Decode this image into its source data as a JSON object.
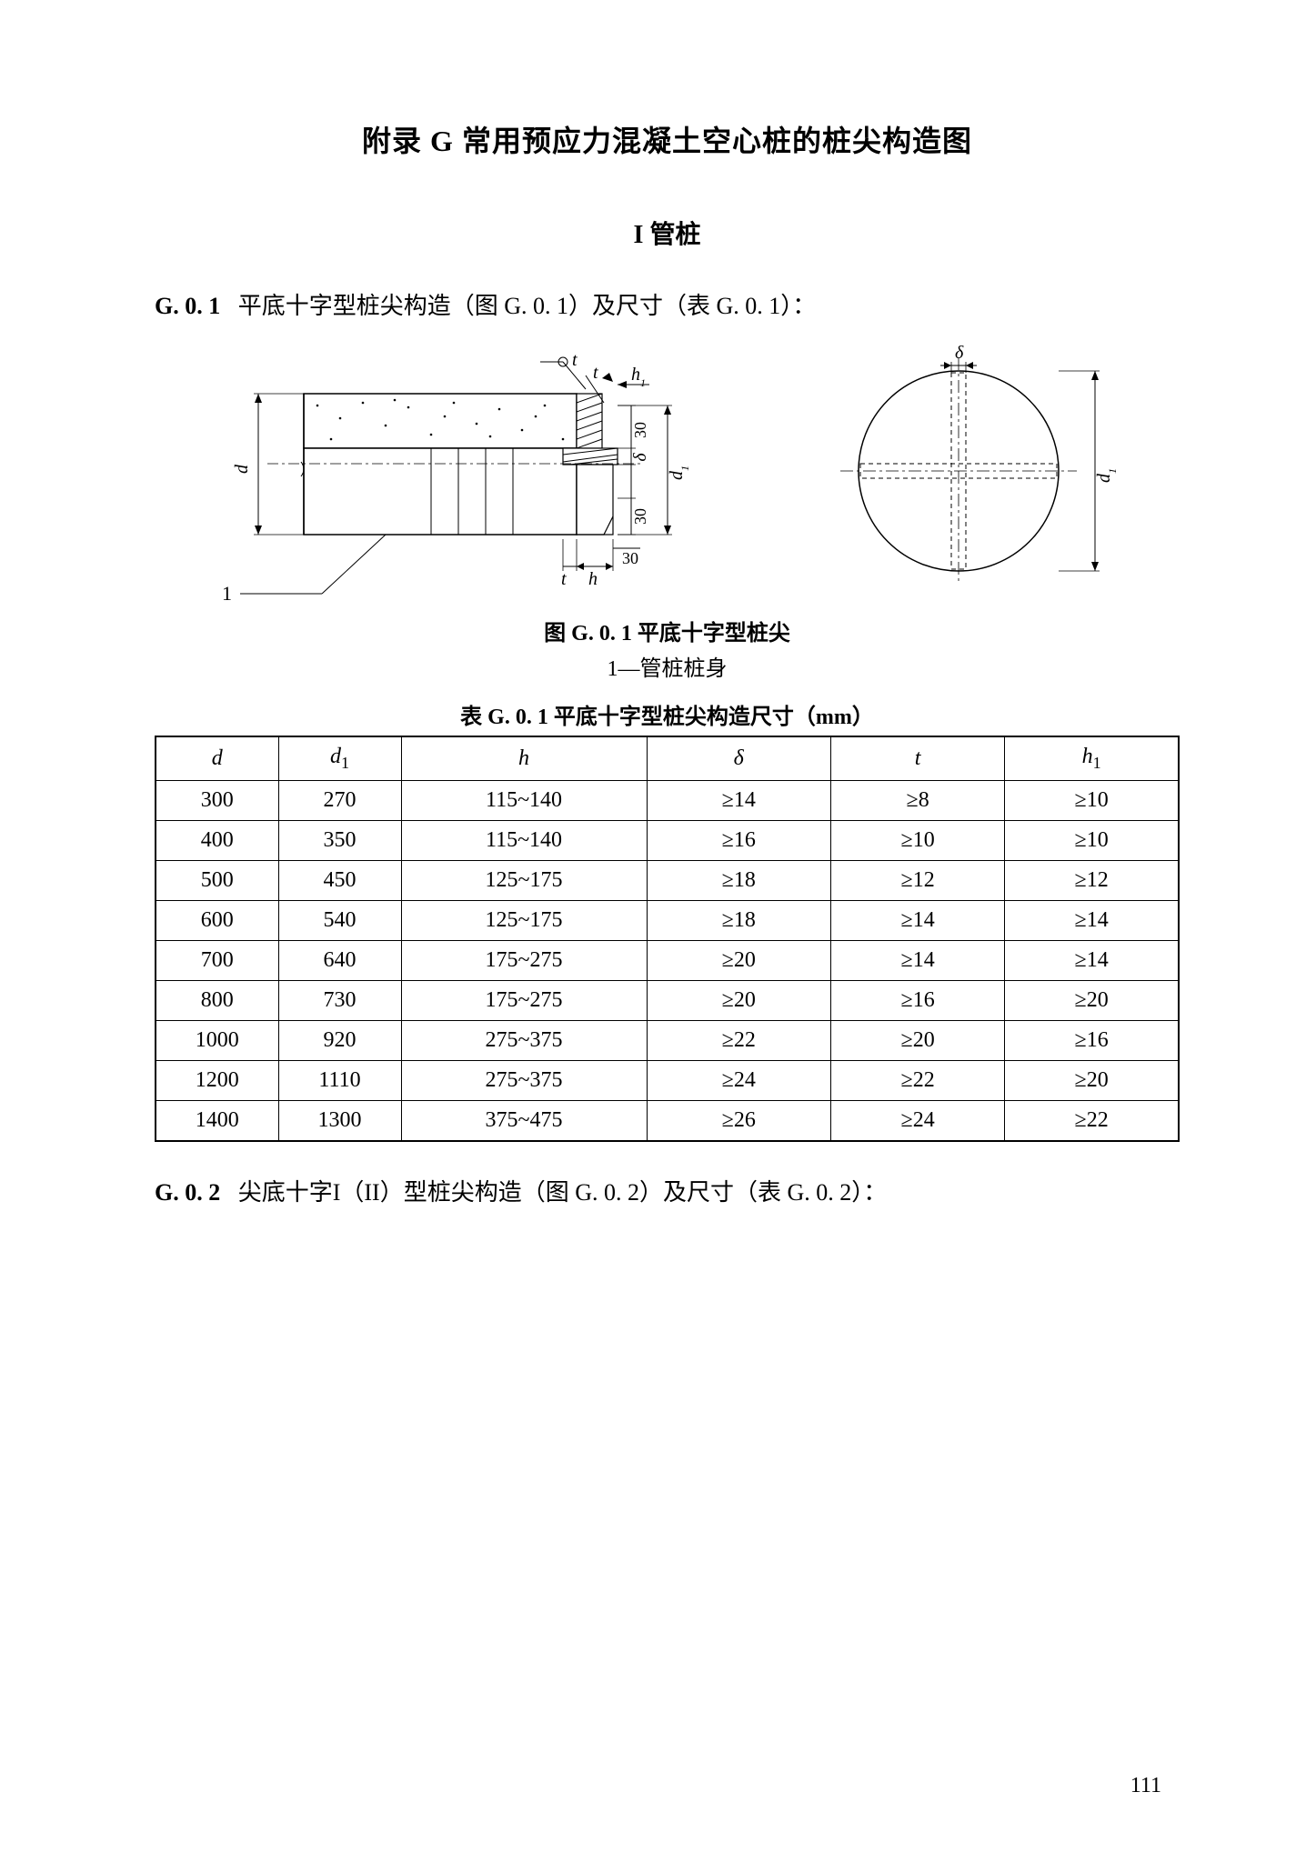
{
  "title": "附录  G    常用预应力混凝土空心桩的桩尖构造图",
  "subtitle": "I    管桩",
  "section_g01_prefix": "G. 0. 1",
  "section_g01_text": "平底十字型桩尖构造（图 G. 0. 1）及尺寸（表 G. 0. 1）：",
  "figure_caption": "图 G. 0. 1    平底十字型桩尖",
  "figure_subcaption": "1—管桩桩身",
  "table_caption": "表 G. 0. 1    平底十字型桩尖构造尺寸（mm）",
  "table": {
    "columns": [
      "d",
      "d1",
      "h",
      "δ",
      "t",
      "h1"
    ],
    "column_widths_pct": [
      12,
      12,
      24,
      18,
      17,
      17
    ],
    "rows": [
      [
        "300",
        "270",
        "115~140",
        "≥14",
        "≥8",
        "≥10"
      ],
      [
        "400",
        "350",
        "115~140",
        "≥16",
        "≥10",
        "≥10"
      ],
      [
        "500",
        "450",
        "125~175",
        "≥18",
        "≥12",
        "≥12"
      ],
      [
        "600",
        "540",
        "125~175",
        "≥18",
        "≥14",
        "≥14"
      ],
      [
        "700",
        "640",
        "175~275",
        "≥20",
        "≥14",
        "≥14"
      ],
      [
        "800",
        "730",
        "175~275",
        "≥20",
        "≥16",
        "≥20"
      ],
      [
        "1000",
        "920",
        "275~375",
        "≥22",
        "≥20",
        "≥16"
      ],
      [
        "1200",
        "1110",
        "275~375",
        "≥24",
        "≥22",
        "≥20"
      ],
      [
        "1400",
        "1300",
        "375~475",
        "≥26",
        "≥24",
        "≥22"
      ]
    ]
  },
  "section_g02_prefix": "G. 0. 2",
  "section_g02_text": "尖底十字I（II）型桩尖构造（图 G. 0. 2）及尺寸（表 G. 0. 2）：",
  "page_number": "111",
  "diagram": {
    "labels": {
      "one": "1",
      "d": "d",
      "d1": "d₁",
      "h": "h",
      "h1": "h₁",
      "t": "t",
      "delta": "δ",
      "thirty": "30"
    },
    "colors": {
      "stroke": "#000000",
      "fill_bg": "#ffffff",
      "hatch": "#000000"
    }
  }
}
